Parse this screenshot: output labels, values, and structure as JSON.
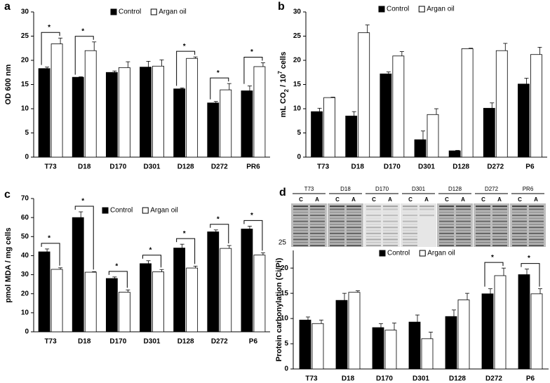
{
  "chart_data": [
    {
      "type": "bar",
      "panel_label": "a",
      "y_label": "OD 600 nm",
      "categories": [
        "T73",
        "D18",
        "D170",
        "D301",
        "D128",
        "D272",
        "PR6"
      ],
      "series": [
        {
          "name": "Control",
          "color": "#000000",
          "values": [
            18.3,
            16.5,
            17.5,
            18.6,
            14.1,
            11.2,
            13.7
          ],
          "errors": [
            0.3,
            0.1,
            0.3,
            1.2,
            0.2,
            0.3,
            1.0
          ]
        },
        {
          "name": "Argan oil",
          "color": "#ffffff",
          "values": [
            23.4,
            22.0,
            18.5,
            18.8,
            20.4,
            13.9,
            18.7
          ],
          "errors": [
            1.2,
            1.8,
            1.2,
            1.3,
            0.3,
            1.3,
            0.8
          ]
        }
      ],
      "significance": [
        "*",
        "*",
        null,
        null,
        "*",
        "*",
        "*"
      ],
      "ylim": [
        0,
        30
      ],
      "yticks": [
        0,
        5,
        10,
        15,
        20,
        25,
        30
      ]
    },
    {
      "type": "bar",
      "panel_label": "b",
      "y_label": [
        "mL CO",
        "2",
        " / 10",
        "7",
        " cells"
      ],
      "y_label_style": [
        "normal",
        "sub",
        "normal",
        "super",
        "normal"
      ],
      "categories": [
        "T73",
        "D18",
        "D170",
        "D301",
        "D128",
        "D272",
        "P6"
      ],
      "series": [
        {
          "name": "Control",
          "color": "#000000",
          "values": [
            9.4,
            8.5,
            17.2,
            3.6,
            1.3,
            10.1,
            15.1
          ],
          "errors": [
            0.7,
            0.9,
            0.4,
            1.8,
            0.1,
            1.1,
            1.2
          ]
        },
        {
          "name": "Argan oil",
          "color": "#ffffff",
          "values": [
            12.3,
            25.7,
            20.9,
            8.8,
            22.4,
            22.0,
            21.2
          ],
          "errors": [
            0.1,
            1.6,
            0.9,
            1.2,
            0.1,
            1.5,
            1.5
          ]
        }
      ],
      "ylim": [
        0,
        30
      ],
      "yticks": [
        0,
        5,
        10,
        15,
        20,
        25,
        30
      ]
    },
    {
      "type": "bar",
      "panel_label": "c",
      "y_label": "pmol MDA / mg cells",
      "categories": [
        "T73",
        "D18",
        "D170",
        "D301",
        "D128",
        "D272",
        "P6"
      ],
      "series": [
        {
          "name": "Control",
          "color": "#000000",
          "values": [
            42,
            60,
            28,
            35.8,
            44,
            52.5,
            54
          ],
          "errors": [
            1.5,
            3,
            0.8,
            1.5,
            2,
            1,
            1.5
          ]
        },
        {
          "name": "Argan oil",
          "color": "#ffffff",
          "values": [
            32.8,
            31.3,
            20.8,
            31.5,
            33.5,
            43.8,
            40.3
          ],
          "errors": [
            0.8,
            0.3,
            1.2,
            1.2,
            1,
            1.5,
            1.2
          ]
        }
      ],
      "significance": [
        "*",
        "*",
        "*",
        "*",
        "*",
        "*",
        "*"
      ],
      "ylim": [
        0,
        70
      ],
      "yticks": [
        0,
        10,
        20,
        30,
        40,
        50,
        60,
        70
      ]
    },
    {
      "type": "bar",
      "panel_label": "d",
      "y_label": "Protein carbonylation (Ci/Pi)",
      "categories": [
        "T73",
        "D18",
        "D170",
        "D301",
        "D128",
        "D272",
        "P6"
      ],
      "series": [
        {
          "name": "Control",
          "color": "#000000",
          "values": [
            9.7,
            13.6,
            8.2,
            9.3,
            10.4,
            14.9,
            18.7
          ],
          "errors": [
            0.6,
            1.4,
            0.8,
            1.4,
            1.3,
            1.0,
            1.1
          ]
        },
        {
          "name": "Argan oil",
          "color": "#ffffff",
          "values": [
            9.0,
            15.2,
            7.7,
            6.0,
            13.7,
            18.5,
            14.9
          ],
          "errors": [
            0.7,
            0.3,
            1.4,
            1.3,
            1.3,
            1.5,
            1.0
          ]
        }
      ],
      "significance": [
        null,
        null,
        null,
        null,
        null,
        "*",
        "*"
      ],
      "ylim": [
        0,
        23.5
      ],
      "yticks": [
        0,
        5,
        10,
        15,
        20
      ],
      "blot": {
        "lanes": [
          "T73",
          "D18",
          "D170",
          "D301",
          "D128",
          "D272",
          "PR6"
        ],
        "lane_letters": [
          "C",
          "A"
        ],
        "marker": "25"
      }
    }
  ]
}
